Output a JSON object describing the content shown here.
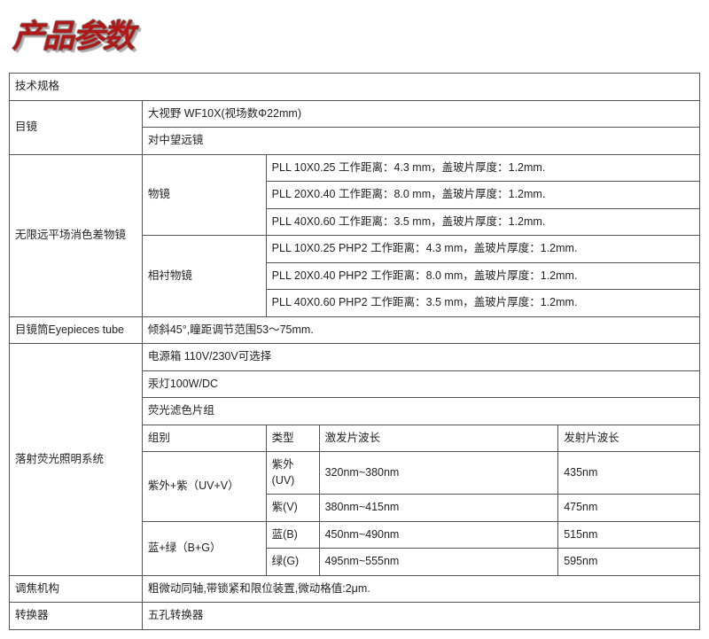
{
  "title_text": "产品参数",
  "title_color": "#b01818",
  "table": {
    "border_color": "#555555",
    "font_size": 12.5,
    "header": "技术规格",
    "eyepiece": {
      "label": "目镜",
      "rows": [
        "大视野 WF10X(视场数Φ22mm)",
        "对中望远镜"
      ]
    },
    "objective": {
      "label": "无限远平场消色差物镜",
      "group1": {
        "label": "物镜",
        "rows": [
          "PLL 10X0.25 工作距离：4.3 mm，盖玻片厚度：1.2mm.",
          "PLL 20X0.40 工作距离：8.0 mm，盖玻片厚度：1.2mm.",
          "PLL 40X0.60 工作距离：3.5 mm，盖玻片厚度：1.2mm."
        ]
      },
      "group2": {
        "label": "相衬物镜",
        "rows": [
          "PLL 10X0.25 PHP2 工作距离：4.3 mm，盖玻片厚度：1.2mm.",
          "PLL 20X0.40 PHP2 工作距离：8.0 mm，盖玻片厚度：1.2mm.",
          "PLL 40X0.60 PHP2 工作距离：3.5 mm，盖玻片厚度：1.2mm."
        ]
      }
    },
    "tube": {
      "label": "目镜筒Eyepieces tube",
      "value": "倾斜45°,瞳距调节范围53～75mm."
    },
    "fluor": {
      "label": "落射荧光照明系统",
      "rows": [
        "电源箱 110V/230V可选择",
        "汞灯100W/DC",
        "荧光滤色片组"
      ],
      "subheader": {
        "c1": "组别",
        "c2": "类型",
        "c3": "激发片波长",
        "c4": "发射片波长"
      },
      "group_uv": {
        "label": "紫外+紫（UV+V）",
        "rows": [
          {
            "type": "紫外 (UV)",
            "excite": "320nm~380nm",
            "emit": "435nm"
          },
          {
            "type": "紫(V)",
            "excite": "380nm~415nm",
            "emit": "475nm"
          }
        ]
      },
      "group_bg": {
        "label": "蓝+绿（B+G）",
        "rows": [
          {
            "type": "蓝(B)",
            "excite": "450nm~490nm",
            "emit": "515nm"
          },
          {
            "type": "绿(G)",
            "excite": "495nm~555nm",
            "emit": "595nm"
          }
        ]
      }
    },
    "focus": {
      "label": "调焦机构",
      "value": "粗微动同轴,带锁紧和限位装置,微动格值:2μm."
    },
    "converter": {
      "label": "转换器",
      "value": "五孔转换器"
    }
  }
}
